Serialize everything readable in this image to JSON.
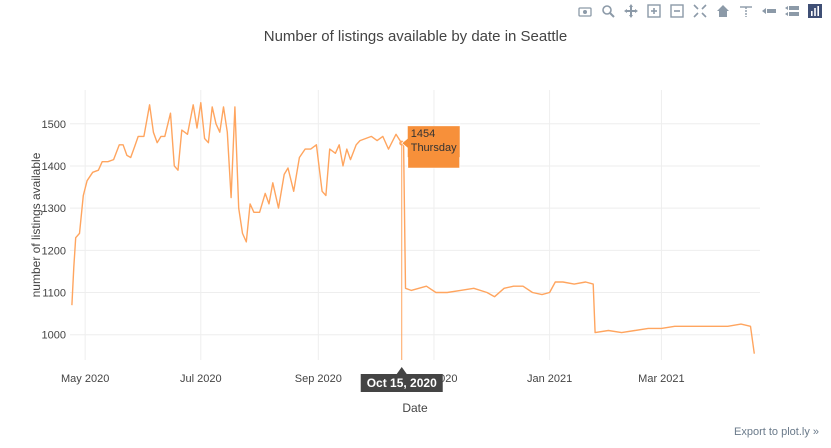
{
  "title": "Number of listings available by date in Seattle",
  "export_link": "Export to plot.ly »",
  "modebar": [
    {
      "name": "camera-icon"
    },
    {
      "name": "zoom-icon"
    },
    {
      "name": "pan-icon"
    },
    {
      "name": "zoom-in-icon"
    },
    {
      "name": "zoom-out-icon"
    },
    {
      "name": "autoscale-icon"
    },
    {
      "name": "home-icon"
    },
    {
      "name": "spike-lines-icon"
    },
    {
      "name": "compare-hover-icon"
    },
    {
      "name": "closest-hover-icon"
    },
    {
      "name": "plotly-logo-icon"
    }
  ],
  "colors": {
    "line": "#ffa55f",
    "tooltip_bg": "#f7903a",
    "axis_tooltip_bg": "#444444",
    "grid": "#eeeeee",
    "text": "#444444"
  },
  "tooltip": {
    "value": "1454",
    "day": "Thursday",
    "date_label": "Oct 15, 2020",
    "x": "2020-10-15",
    "y": 1454
  },
  "chart_data": {
    "type": "line",
    "title": "Number of listings available by date in Seattle",
    "xlabel": "Date",
    "ylabel": "number of listings available",
    "xlim": [
      "2020-04-23",
      "2021-04-22"
    ],
    "ylim": [
      940,
      1580
    ],
    "x_ticks": [
      {
        "date": "2020-05-01",
        "label": "May 2020"
      },
      {
        "date": "2020-07-01",
        "label": "Jul 2020"
      },
      {
        "date": "2020-09-01",
        "label": "Sep 2020"
      },
      {
        "date": "2020-11-01",
        "label": "Nov 2020"
      },
      {
        "date": "2021-01-01",
        "label": "Jan 2021"
      },
      {
        "date": "2021-03-01",
        "label": "Mar 2021"
      }
    ],
    "y_ticks": [
      1000,
      1100,
      1200,
      1300,
      1400,
      1500
    ],
    "grid": true,
    "series": [
      {
        "points": [
          [
            "2020-04-24",
            1070
          ],
          [
            "2020-04-25",
            1160
          ],
          [
            "2020-04-26",
            1230
          ],
          [
            "2020-04-28",
            1240
          ],
          [
            "2020-04-30",
            1330
          ],
          [
            "2020-05-02",
            1365
          ],
          [
            "2020-05-05",
            1385
          ],
          [
            "2020-05-08",
            1390
          ],
          [
            "2020-05-10",
            1410
          ],
          [
            "2020-05-13",
            1410
          ],
          [
            "2020-05-16",
            1415
          ],
          [
            "2020-05-19",
            1450
          ],
          [
            "2020-05-21",
            1450
          ],
          [
            "2020-05-23",
            1425
          ],
          [
            "2020-05-25",
            1420
          ],
          [
            "2020-05-27",
            1445
          ],
          [
            "2020-05-29",
            1470
          ],
          [
            "2020-06-01",
            1470
          ],
          [
            "2020-06-04",
            1545
          ],
          [
            "2020-06-06",
            1480
          ],
          [
            "2020-06-08",
            1455
          ],
          [
            "2020-06-10",
            1470
          ],
          [
            "2020-06-12",
            1470
          ],
          [
            "2020-06-15",
            1525
          ],
          [
            "2020-06-17",
            1400
          ],
          [
            "2020-06-19",
            1390
          ],
          [
            "2020-06-21",
            1485
          ],
          [
            "2020-06-24",
            1475
          ],
          [
            "2020-06-27",
            1545
          ],
          [
            "2020-06-29",
            1490
          ],
          [
            "2020-07-01",
            1550
          ],
          [
            "2020-07-03",
            1465
          ],
          [
            "2020-07-05",
            1455
          ],
          [
            "2020-07-07",
            1540
          ],
          [
            "2020-07-09",
            1500
          ],
          [
            "2020-07-11",
            1480
          ],
          [
            "2020-07-13",
            1540
          ],
          [
            "2020-07-15",
            1480
          ],
          [
            "2020-07-17",
            1325
          ],
          [
            "2020-07-19",
            1540
          ],
          [
            "2020-07-21",
            1300
          ],
          [
            "2020-07-23",
            1240
          ],
          [
            "2020-07-25",
            1220
          ],
          [
            "2020-07-27",
            1310
          ],
          [
            "2020-07-29",
            1290
          ],
          [
            "2020-08-01",
            1290
          ],
          [
            "2020-08-04",
            1335
          ],
          [
            "2020-08-06",
            1310
          ],
          [
            "2020-08-08",
            1360
          ],
          [
            "2020-08-11",
            1300
          ],
          [
            "2020-08-14",
            1380
          ],
          [
            "2020-08-16",
            1395
          ],
          [
            "2020-08-19",
            1340
          ],
          [
            "2020-08-22",
            1420
          ],
          [
            "2020-08-25",
            1440
          ],
          [
            "2020-08-28",
            1440
          ],
          [
            "2020-08-31",
            1450
          ],
          [
            "2020-09-03",
            1340
          ],
          [
            "2020-09-05",
            1330
          ],
          [
            "2020-09-07",
            1440
          ],
          [
            "2020-09-10",
            1430
          ],
          [
            "2020-09-12",
            1450
          ],
          [
            "2020-09-14",
            1400
          ],
          [
            "2020-09-16",
            1440
          ],
          [
            "2020-09-18",
            1415
          ],
          [
            "2020-09-21",
            1450
          ],
          [
            "2020-09-23",
            1460
          ],
          [
            "2020-09-26",
            1465
          ],
          [
            "2020-09-29",
            1470
          ],
          [
            "2020-10-02",
            1460
          ],
          [
            "2020-10-05",
            1470
          ],
          [
            "2020-10-08",
            1440
          ],
          [
            "2020-10-12",
            1475
          ],
          [
            "2020-10-15",
            1454
          ],
          [
            "2020-10-16",
            1450
          ],
          [
            "2020-10-17",
            1110
          ],
          [
            "2020-10-20",
            1105
          ],
          [
            "2020-10-24",
            1110
          ],
          [
            "2020-10-28",
            1115
          ],
          [
            "2020-11-02",
            1100
          ],
          [
            "2020-11-08",
            1100
          ],
          [
            "2020-11-15",
            1105
          ],
          [
            "2020-11-22",
            1110
          ],
          [
            "2020-11-29",
            1100
          ],
          [
            "2020-12-03",
            1090
          ],
          [
            "2020-12-08",
            1110
          ],
          [
            "2020-12-13",
            1115
          ],
          [
            "2020-12-18",
            1115
          ],
          [
            "2020-12-23",
            1100
          ],
          [
            "2020-12-28",
            1095
          ],
          [
            "2021-01-01",
            1100
          ],
          [
            "2021-01-04",
            1125
          ],
          [
            "2021-01-08",
            1125
          ],
          [
            "2021-01-14",
            1120
          ],
          [
            "2021-01-20",
            1125
          ],
          [
            "2021-01-24",
            1120
          ],
          [
            "2021-01-25",
            1005
          ],
          [
            "2021-02-01",
            1010
          ],
          [
            "2021-02-08",
            1005
          ],
          [
            "2021-02-15",
            1010
          ],
          [
            "2021-02-22",
            1015
          ],
          [
            "2021-03-01",
            1015
          ],
          [
            "2021-03-08",
            1020
          ],
          [
            "2021-03-15",
            1020
          ],
          [
            "2021-03-22",
            1020
          ],
          [
            "2021-03-29",
            1020
          ],
          [
            "2021-04-05",
            1020
          ],
          [
            "2021-04-12",
            1025
          ],
          [
            "2021-04-17",
            1020
          ],
          [
            "2021-04-19",
            955
          ]
        ]
      }
    ]
  }
}
